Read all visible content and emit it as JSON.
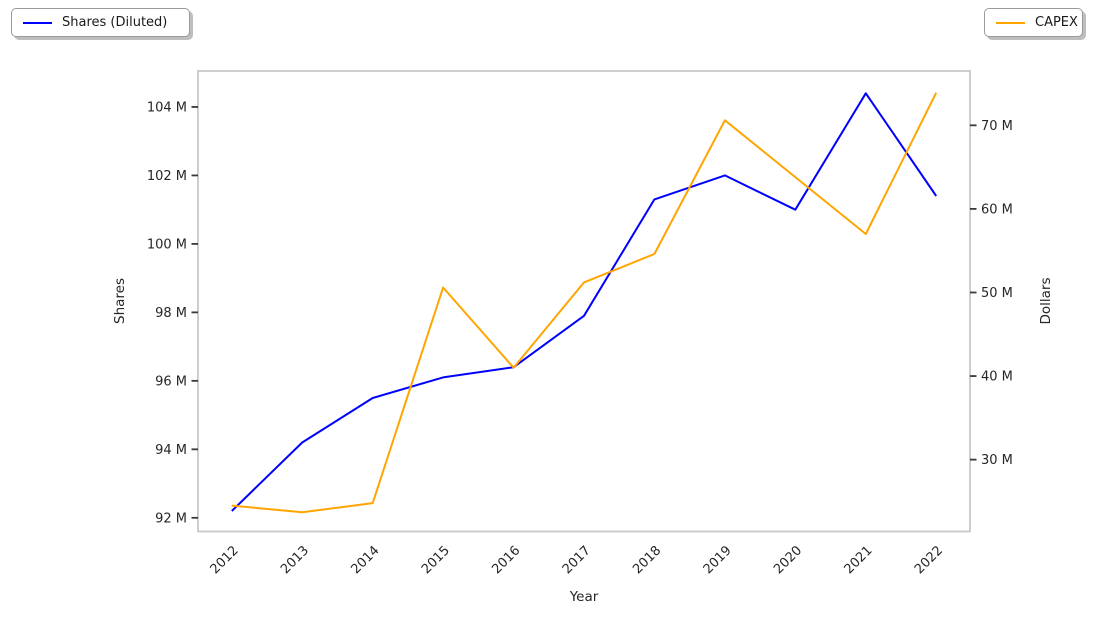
{
  "chart_data": {
    "type": "line",
    "title": "",
    "xlabel": "Year",
    "ylabel_left": "Shares",
    "ylabel_right": "Dollars",
    "x": [
      2012,
      2013,
      2014,
      2015,
      2016,
      2017,
      2018,
      2019,
      2020,
      2021,
      2022
    ],
    "x_tick_labels": [
      "2012",
      "2013",
      "2014",
      "2015",
      "2016",
      "2017",
      "2018",
      "2019",
      "2020",
      "2021",
      "2022"
    ],
    "x_tick_rotation_deg": 45,
    "x_range": [
      2011.52,
      2022.48
    ],
    "grid": false,
    "series": [
      {
        "name": "Shares (Diluted)",
        "axis": "left",
        "color": "#0000ff",
        "values": [
          92.2,
          94.2,
          95.5,
          96.1,
          96.4,
          97.9,
          101.3,
          102.0,
          101.0,
          104.4,
          101.4
        ],
        "values_unit": "millions of shares"
      },
      {
        "name": "CAPEX",
        "axis": "right",
        "color": "#ffa500",
        "values": [
          24.5,
          23.7,
          24.8,
          50.6,
          41.0,
          51.2,
          54.6,
          70.6,
          63.8,
          57.0,
          73.9
        ],
        "values_unit": "millions of dollars"
      }
    ],
    "left_axis": {
      "ticks": [
        92,
        94,
        96,
        98,
        100,
        102,
        104
      ],
      "tick_labels": [
        "92 M",
        "94 M",
        "96 M",
        "98 M",
        "100 M",
        "102 M",
        "104 M"
      ],
      "range": [
        91.6,
        105.05
      ]
    },
    "right_axis": {
      "ticks": [
        30,
        40,
        50,
        60,
        70
      ],
      "tick_labels": [
        "30 M",
        "40 M",
        "50 M",
        "60 M",
        "70 M"
      ],
      "range": [
        21.4,
        76.5
      ]
    },
    "legend": [
      {
        "label": "Shares (Diluted)",
        "position": "top-left",
        "color": "#0000ff"
      },
      {
        "label": "CAPEX",
        "position": "top-right",
        "color": "#ffa500"
      }
    ]
  },
  "style": {
    "background": "#ffffff",
    "spine_color": "#c8c8c8",
    "tick_color": "#3a3a3a",
    "text_color": "#262626",
    "line_width": 2
  }
}
